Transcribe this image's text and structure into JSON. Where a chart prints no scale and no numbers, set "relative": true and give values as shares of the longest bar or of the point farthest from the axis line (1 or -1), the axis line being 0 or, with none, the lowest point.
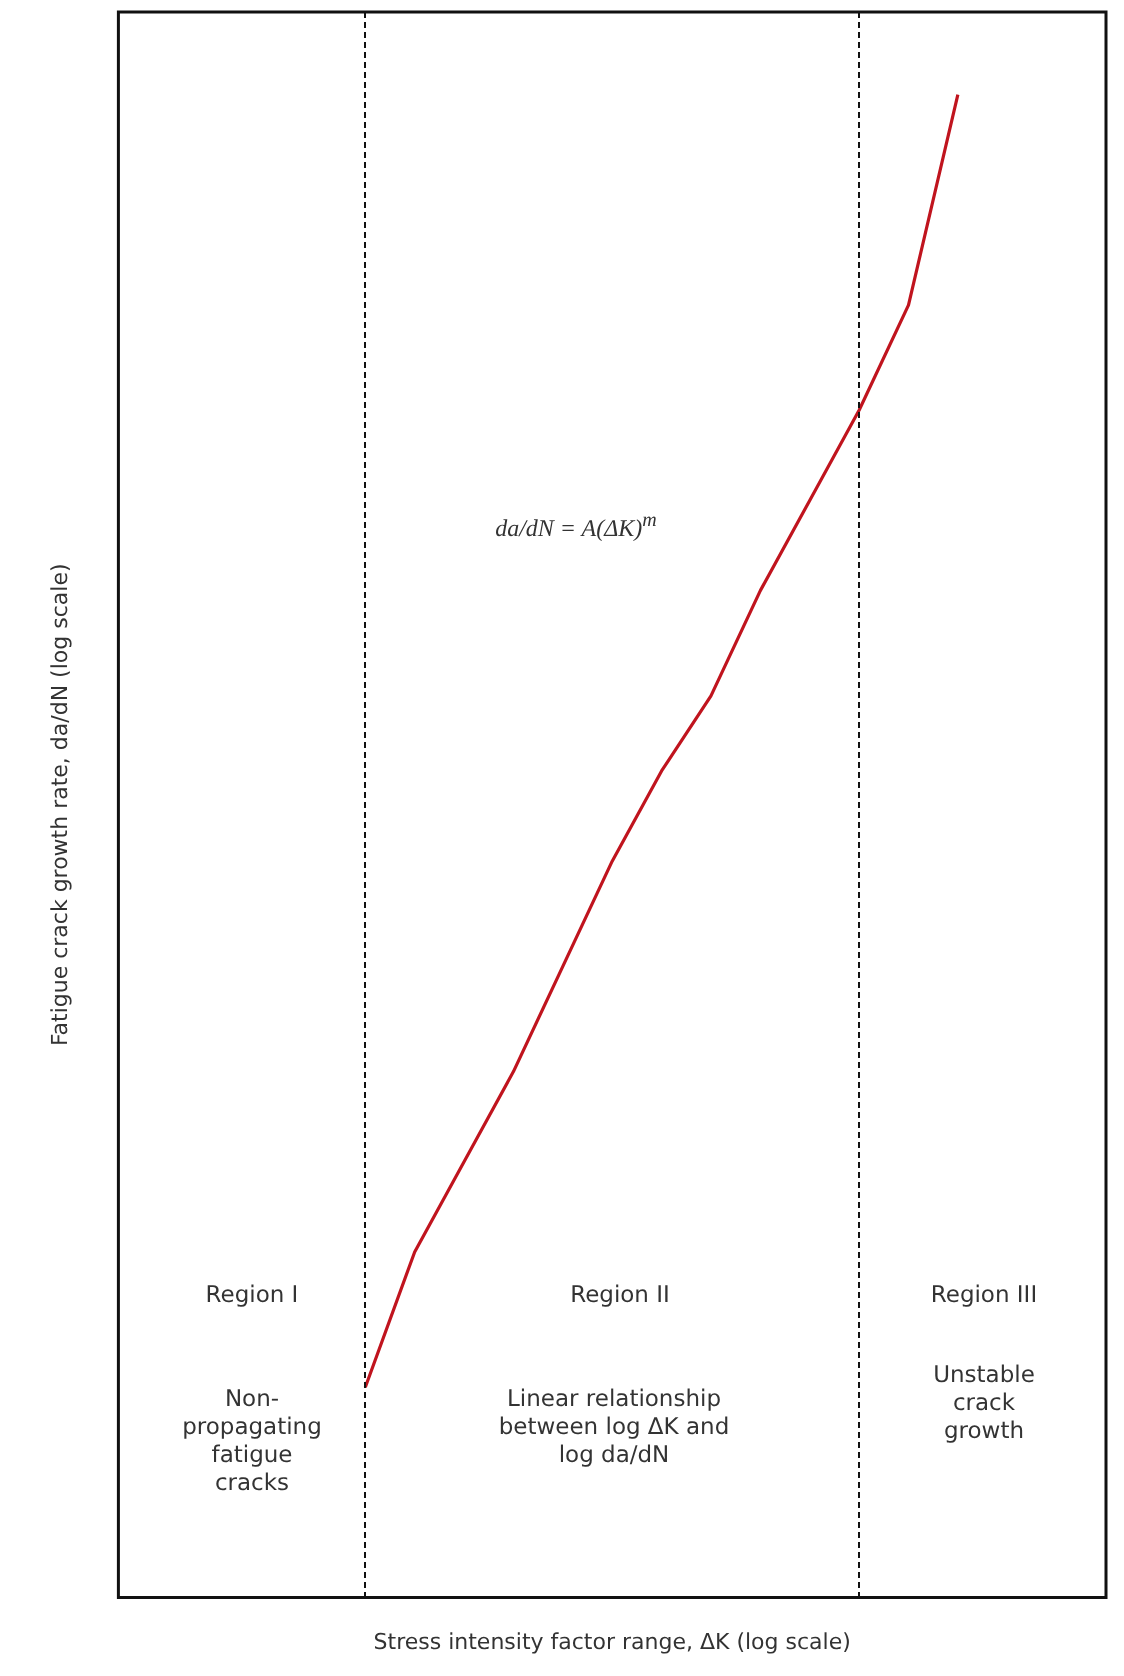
{
  "chart_data": {
    "type": "line",
    "relative": true,
    "xlabel": "Stress intensity factor range, ΔK (log scale)",
    "ylabel": "Fatigue crack growth rate, da/dN (log scale)",
    "categories": [
      null,
      null,
      null,
      null,
      null,
      null,
      null,
      null,
      null,
      null,
      null,
      null,
      null,
      null,
      null,
      null,
      null,
      null,
      null,
      null,
      null
    ],
    "series": [
      {
        "color": "#c0141e",
        "values": [
          null,
          null,
          null,
          null,
          null,
          0.14,
          0.23,
          0.29,
          0.35,
          0.42,
          0.49,
          0.55,
          0.6,
          0.67,
          0.73,
          0.79,
          0.86,
          1,
          null,
          null,
          null
        ]
      }
    ],
    "annotations": [
      "da/dN = A(ΔK)$^{m}$",
      "Region I",
      "Non-propagating fatigue cracks",
      "Region II",
      "Linear relationship between log ΔK and log da/dN",
      "Region III",
      "Unstable crack growth"
    ]
  }
}
